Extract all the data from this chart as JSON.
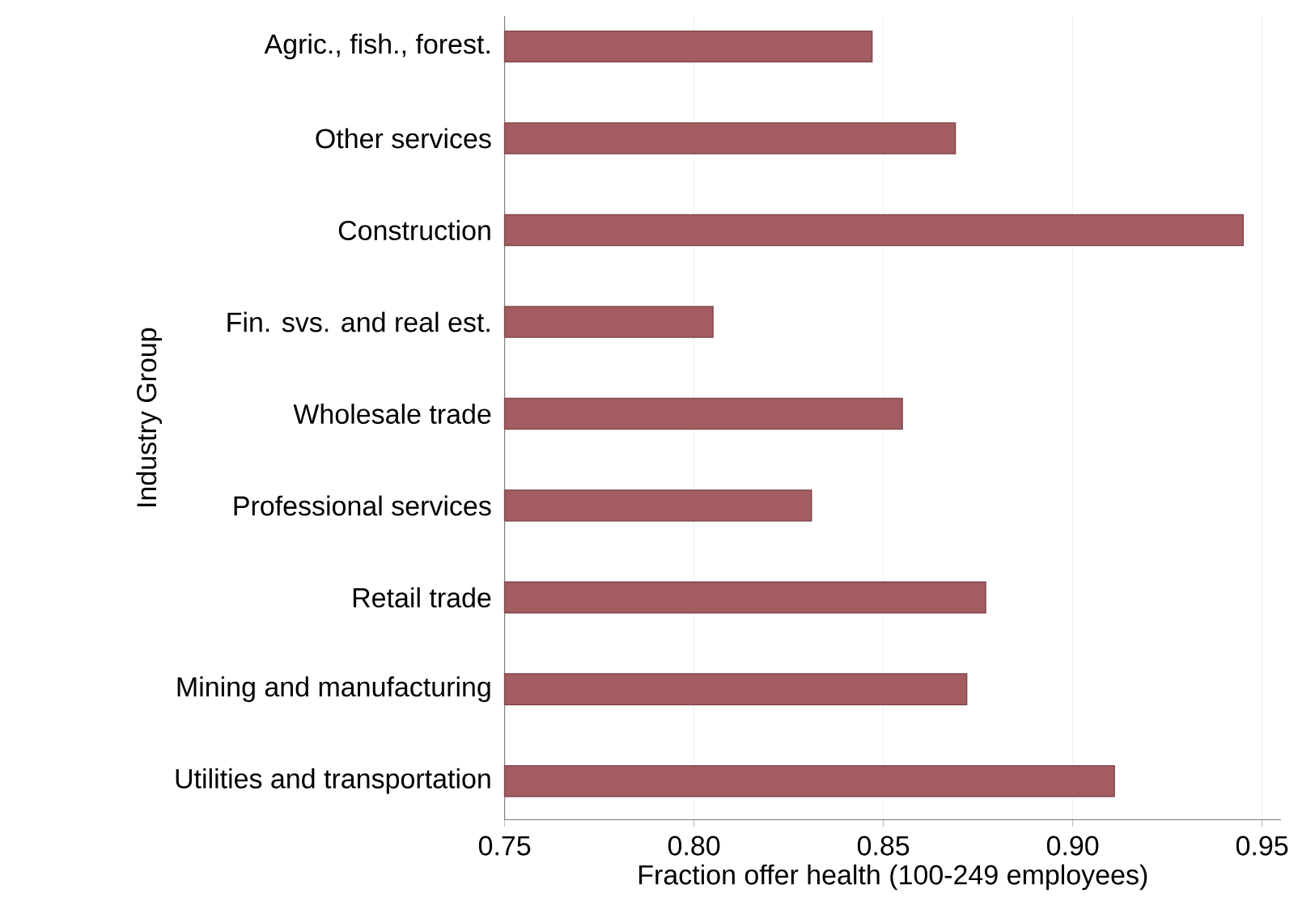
{
  "chart_data": {
    "type": "bar",
    "orientation": "horizontal",
    "xlabel": "Fraction offer health (100-249 employees)",
    "ylabel": "Industry Group",
    "categories": [
      "Agric., fish., forest.",
      "Other services",
      "Construction",
      "Fin. svs. and real est.",
      "Wholesale trade",
      "Professional services",
      "Retail trade",
      "Mining and manufacturing",
      "Utilities and transportation"
    ],
    "values": [
      0.847,
      0.869,
      0.945,
      0.805,
      0.855,
      0.831,
      0.877,
      0.872,
      0.911
    ],
    "color": "#a35d61",
    "xlim": [
      0.75,
      0.955
    ],
    "xticks": [
      {
        "value": 0.75,
        "label": "0.75"
      },
      {
        "value": 0.8,
        "label": "0.80"
      },
      {
        "value": 0.85,
        "label": "0.85"
      },
      {
        "value": 0.9,
        "label": "0.90"
      },
      {
        "value": 0.95,
        "label": "0.95"
      }
    ],
    "grid": "x"
  }
}
